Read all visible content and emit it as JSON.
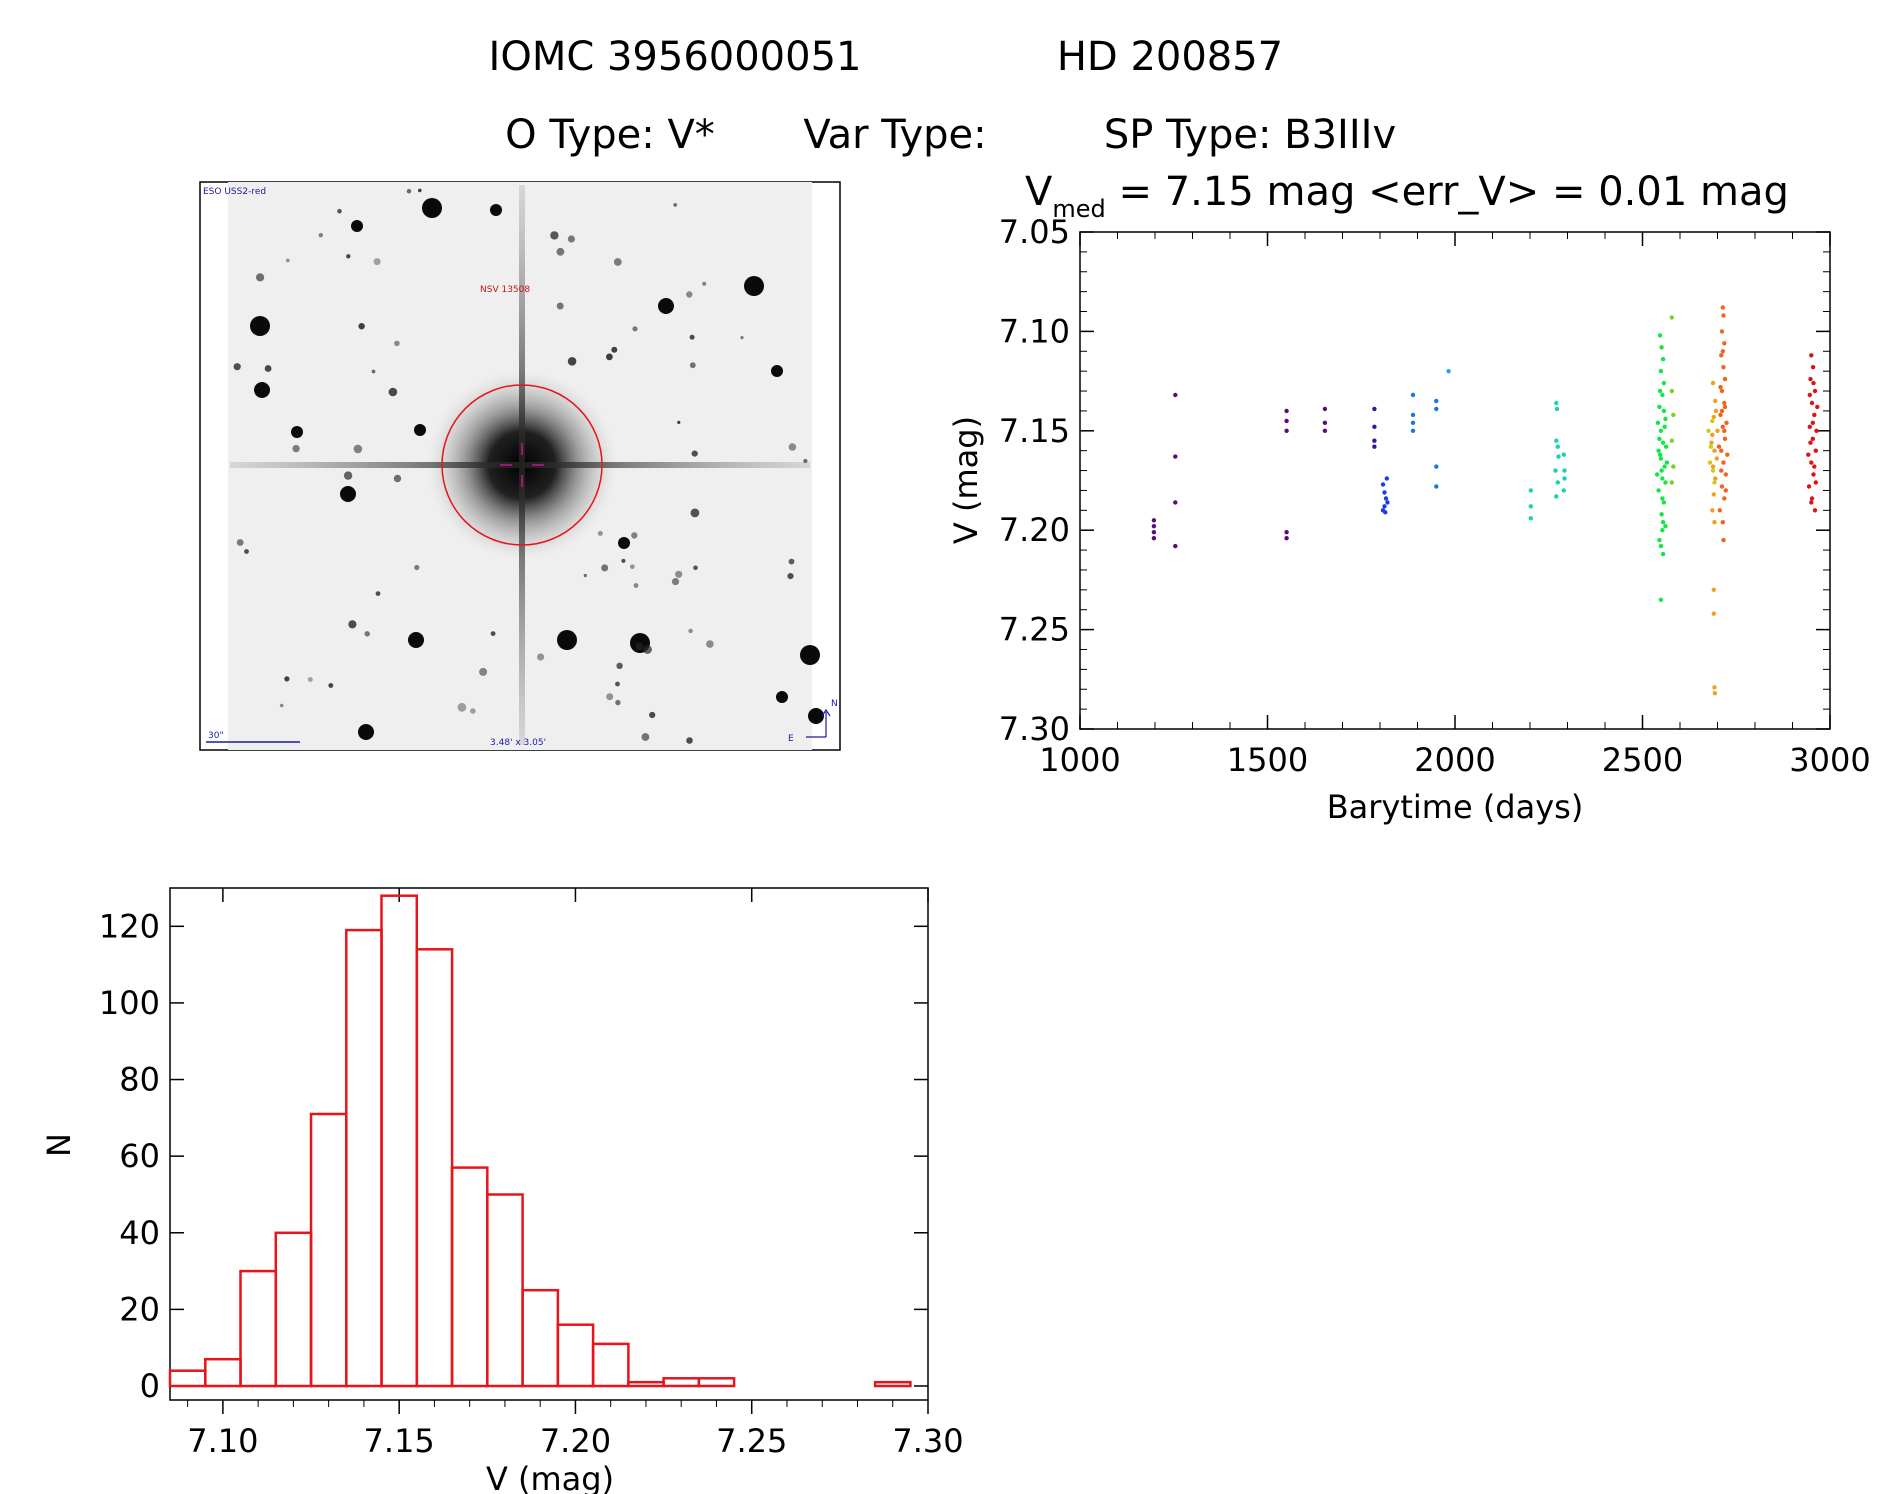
{
  "header": {
    "line1_id": "IOMC 3956000051",
    "line1_name": "HD 200857",
    "otype": "O Type: V*",
    "vartype": "Var Type:",
    "sptype": "SP Type: B3IIIv"
  },
  "finder": {
    "survey": "ESO USS2-red",
    "target": "NSV 13508",
    "scale": "30\"",
    "fov": "3.48' x 3.05'",
    "north": "N",
    "east": "E"
  },
  "lightcurve_title": {
    "v": "V",
    "sub": "med",
    "rest": " = 7.15 mag <err_V> = 0.01 mag"
  },
  "colors": {
    "histogram": "#e8141c",
    "finder_circle": "#e8141c",
    "finder_cross": "#c0168c",
    "finder_label_blue": "#1a1aa0",
    "finder_label_red": "#c81414"
  },
  "chart_data": [
    {
      "type": "scatter",
      "title": "Vmed = 7.15 mag <err_V> = 0.01 mag",
      "xlabel": "Barytime (days)",
      "ylabel": "V (mag)",
      "xlim": [
        1000,
        3000
      ],
      "ylim": [
        7.3,
        7.05
      ],
      "y_inverted": true,
      "xticks": [
        "1000",
        "1500",
        "2000",
        "2500",
        "3000"
      ],
      "yticks": [
        "7.05",
        "7.10",
        "7.15",
        "7.20",
        "7.25",
        "7.30"
      ],
      "color_note": "points colored by time, violet to red",
      "groups": [
        {
          "color": "#5a0d78",
          "points": [
            [
              1197,
              7.195
            ],
            [
              1197,
              7.198
            ],
            [
              1197,
              7.201
            ],
            [
              1197,
              7.204
            ],
            [
              1254,
              7.132
            ],
            [
              1254,
              7.163
            ],
            [
              1254,
              7.186
            ],
            [
              1254,
              7.208
            ]
          ]
        },
        {
          "color": "#5a0d78",
          "points": [
            [
              1551,
              7.14
            ],
            [
              1551,
              7.145
            ],
            [
              1551,
              7.15
            ],
            [
              1551,
              7.201
            ],
            [
              1551,
              7.204
            ],
            [
              1653,
              7.139
            ],
            [
              1653,
              7.146
            ],
            [
              1653,
              7.15
            ]
          ]
        },
        {
          "color": "#3c12a0",
          "points": [
            [
              1785,
              7.139
            ],
            [
              1785,
              7.148
            ],
            [
              1785,
              7.155
            ],
            [
              1785,
              7.158
            ]
          ]
        },
        {
          "color": "#1e3ce6",
          "points": [
            [
              1808,
              7.177
            ],
            [
              1812,
              7.181
            ],
            [
              1816,
              7.184
            ],
            [
              1820,
              7.186
            ],
            [
              1808,
              7.19
            ],
            [
              1812,
              7.188
            ],
            [
              1818,
              7.174
            ],
            [
              1814,
              7.191
            ]
          ]
        },
        {
          "color": "#1a78dc",
          "points": [
            [
              1888,
              7.132
            ],
            [
              1888,
              7.142
            ],
            [
              1888,
              7.146
            ],
            [
              1888,
              7.15
            ],
            [
              1950,
              7.135
            ],
            [
              1950,
              7.139
            ],
            [
              1950,
              7.168
            ],
            [
              1950,
              7.178
            ]
          ]
        },
        {
          "color": "#18a8e8",
          "points": [
            [
              1983,
              7.12
            ]
          ]
        },
        {
          "color": "#18d2b4",
          "points": [
            [
              2202,
              7.18
            ],
            [
              2202,
              7.188
            ],
            [
              2202,
              7.194
            ],
            [
              2270,
              7.136
            ],
            [
              2272,
              7.139
            ],
            [
              2270,
              7.155
            ],
            [
              2274,
              7.158
            ],
            [
              2276,
              7.163
            ],
            [
              2268,
              7.17
            ],
            [
              2274,
              7.176
            ],
            [
              2270,
              7.183
            ],
            [
              2290,
              7.162
            ],
            [
              2292,
              7.17
            ],
            [
              2292,
              7.174
            ],
            [
              2290,
              7.18
            ]
          ]
        },
        {
          "color": "#14e646",
          "points": [
            [
              2549,
              7.235
            ],
            [
              2555,
              7.212
            ],
            [
              2545,
              7.205
            ],
            [
              2561,
              7.198
            ],
            [
              2551,
              7.192
            ],
            [
              2557,
              7.186
            ],
            [
              2543,
              7.18
            ],
            [
              2553,
              7.174
            ],
            [
              2559,
              7.168
            ],
            [
              2547,
              7.162
            ],
            [
              2555,
              7.156
            ],
            [
              2549,
              7.15
            ],
            [
              2561,
              7.144
            ],
            [
              2545,
              7.138
            ],
            [
              2553,
              7.132
            ],
            [
              2557,
              7.126
            ],
            [
              2549,
              7.12
            ],
            [
              2555,
              7.114
            ],
            [
              2551,
              7.108
            ],
            [
              2547,
              7.102
            ],
            [
              2559,
              7.148
            ],
            [
              2543,
              7.16
            ],
            [
              2551,
              7.17
            ],
            [
              2557,
              7.14
            ],
            [
              2545,
              7.154
            ],
            [
              2561,
              7.176
            ],
            [
              2553,
              7.184
            ],
            [
              2549,
              7.164
            ],
            [
              2555,
              7.196
            ],
            [
              2547,
              7.13
            ],
            [
              2563,
              7.158
            ],
            [
              2541,
              7.146
            ],
            [
              2565,
              7.166
            ],
            [
              2539,
              7.172
            ],
            [
              2553,
              7.2
            ],
            [
              2549,
              7.208
            ]
          ]
        },
        {
          "color": "#7ad21e",
          "points": [
            [
              2578,
              7.093
            ],
            [
              2578,
              7.13
            ],
            [
              2582,
              7.142
            ],
            [
              2578,
              7.155
            ],
            [
              2582,
              7.168
            ],
            [
              2578,
              7.176
            ]
          ]
        },
        {
          "color": "#d2c81e",
          "points": [
            [
              2676,
              7.15
            ],
            [
              2682,
              7.158
            ],
            [
              2688,
              7.17
            ],
            [
              2680,
              7.166
            ],
            [
              2686,
              7.145
            ],
            [
              2692,
              7.176
            ]
          ]
        },
        {
          "color": "#f0a01e",
          "points": [
            [
              2690,
              7.23
            ],
            [
              2690,
              7.242
            ],
            [
              2692,
              7.279
            ],
            [
              2693,
              7.282
            ],
            [
              2688,
              7.126
            ],
            [
              2694,
              7.135
            ],
            [
              2690,
              7.143
            ],
            [
              2686,
              7.152
            ],
            [
              2692,
              7.16
            ],
            [
              2688,
              7.168
            ],
            [
              2694,
              7.174
            ],
            [
              2690,
              7.182
            ],
            [
              2686,
              7.19
            ],
            [
              2692,
              7.196
            ],
            [
              2696,
              7.14
            ],
            [
              2684,
              7.156
            ],
            [
              2698,
              7.164
            ],
            [
              2700,
              7.15
            ]
          ]
        },
        {
          "color": "#f0641e",
          "points": [
            [
              2714,
              7.088
            ],
            [
              2716,
              7.092
            ],
            [
              2712,
              7.1
            ],
            [
              2718,
              7.106
            ],
            [
              2710,
              7.112
            ],
            [
              2716,
              7.118
            ],
            [
              2720,
              7.124
            ],
            [
              2712,
              7.13
            ],
            [
              2718,
              7.136
            ],
            [
              2708,
              7.142
            ],
            [
              2714,
              7.148
            ],
            [
              2720,
              7.154
            ],
            [
              2710,
              7.16
            ],
            [
              2716,
              7.166
            ],
            [
              2722,
              7.172
            ],
            [
              2712,
              7.178
            ],
            [
              2718,
              7.184
            ],
            [
              2706,
              7.19
            ],
            [
              2714,
              7.196
            ],
            [
              2716,
              7.205
            ],
            [
              2724,
              7.146
            ],
            [
              2704,
              7.158
            ],
            [
              2720,
              7.138
            ],
            [
              2710,
              7.17
            ],
            [
              2726,
              7.162
            ],
            [
              2708,
              7.128
            ],
            [
              2722,
              7.18
            ],
            [
              2714,
              7.11
            ],
            [
              2718,
              7.15
            ],
            [
              2712,
              7.14
            ]
          ]
        },
        {
          "color": "#dc1414",
          "points": [
            [
              2950,
              7.112
            ],
            [
              2955,
              7.118
            ],
            [
              2948,
              7.124
            ],
            [
              2960,
              7.13
            ],
            [
              2952,
              7.136
            ],
            [
              2958,
              7.142
            ],
            [
              2946,
              7.148
            ],
            [
              2954,
              7.154
            ],
            [
              2962,
              7.16
            ],
            [
              2950,
              7.166
            ],
            [
              2956,
              7.172
            ],
            [
              2944,
              7.178
            ],
            [
              2952,
              7.184
            ],
            [
              2960,
              7.19
            ],
            [
              2948,
              7.156
            ],
            [
              2964,
              7.15
            ],
            [
              2942,
              7.162
            ],
            [
              2966,
              7.138
            ],
            [
              2954,
              7.146
            ],
            [
              2958,
              7.168
            ],
            [
              2946,
              7.132
            ],
            [
              2962,
              7.176
            ],
            [
              2950,
              7.186
            ],
            [
              2956,
              7.126
            ]
          ]
        }
      ]
    },
    {
      "type": "bar",
      "title": "",
      "xlabel": "V (mag)",
      "ylabel": "N",
      "xlim": [
        7.085,
        7.3
      ],
      "ylim": [
        0,
        130
      ],
      "xticks": [
        "7.10",
        "7.15",
        "7.20",
        "7.25",
        "7.30"
      ],
      "yticks": [
        "0",
        "20",
        "40",
        "60",
        "80",
        "100",
        "120"
      ],
      "bin_width": 0.01,
      "bin_edges_start": 7.09,
      "values": [
        4,
        7,
        30,
        40,
        71,
        119,
        128,
        114,
        57,
        50,
        25,
        16,
        11,
        1,
        2,
        2,
        0,
        0,
        0,
        0,
        1
      ]
    }
  ]
}
